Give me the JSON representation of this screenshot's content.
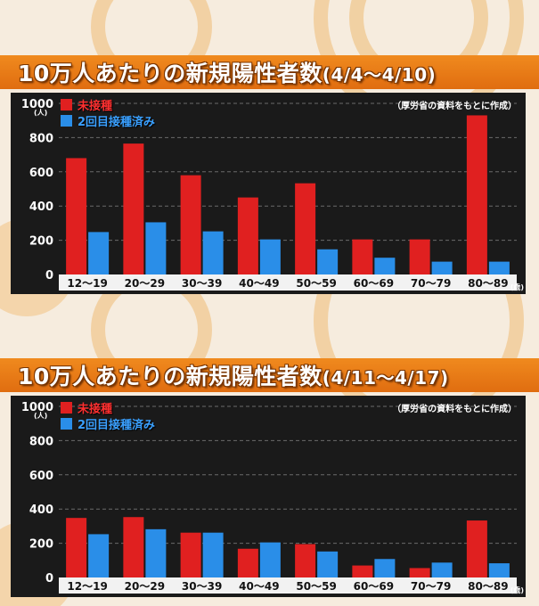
{
  "colors": {
    "unvaccinated": "#e02020",
    "vaccinated_2": "#2a8ee8",
    "title_bar": "#e8781a",
    "chart_bg": "#1a1a1a",
    "x_label_bg": "#f2f2f2"
  },
  "chart_data": [
    {
      "type": "bar",
      "title": "10万人あたりの新規陽性者数",
      "subtitle": "(4/4～4/10)",
      "source_note": "（厚労省の資料をもとに作成）",
      "y_unit": "(人)",
      "x_unit": "(歳)",
      "categories": [
        "12～19",
        "20～29",
        "30～39",
        "40～49",
        "50～59",
        "60～69",
        "70～79",
        "80～89"
      ],
      "series": [
        {
          "name": "未接種",
          "color": "#e02020",
          "values": [
            680,
            765,
            580,
            450,
            533,
            205,
            205,
            930
          ]
        },
        {
          "name": "2回目接種済み",
          "color": "#2a8ee8",
          "values": [
            248,
            305,
            252,
            205,
            147,
            98,
            75,
            75
          ]
        }
      ],
      "yticks": [
        0,
        200,
        400,
        600,
        800,
        1000
      ],
      "ylim": [
        0,
        1000
      ],
      "grid": true,
      "legend": "top-left"
    },
    {
      "type": "bar",
      "title": "10万人あたりの新規陽性者数",
      "subtitle": "(4/11～4/17)",
      "source_note": "（厚労省の資料をもとに作成）",
      "y_unit": "(人)",
      "x_unit": "(歳)",
      "categories": [
        "12～19",
        "20～29",
        "30～39",
        "40～49",
        "50～59",
        "60～69",
        "70～79",
        "80～89"
      ],
      "series": [
        {
          "name": "未接種",
          "color": "#e02020",
          "values": [
            348,
            353,
            262,
            168,
            195,
            70,
            55,
            333
          ]
        },
        {
          "name": "2回目接種済み",
          "color": "#2a8ee8",
          "values": [
            253,
            282,
            262,
            205,
            152,
            108,
            87,
            83
          ]
        }
      ],
      "yticks": [
        0,
        200,
        400,
        600,
        800,
        1000
      ],
      "ylim": [
        0,
        1000
      ],
      "grid": true,
      "legend": "top-left"
    }
  ]
}
